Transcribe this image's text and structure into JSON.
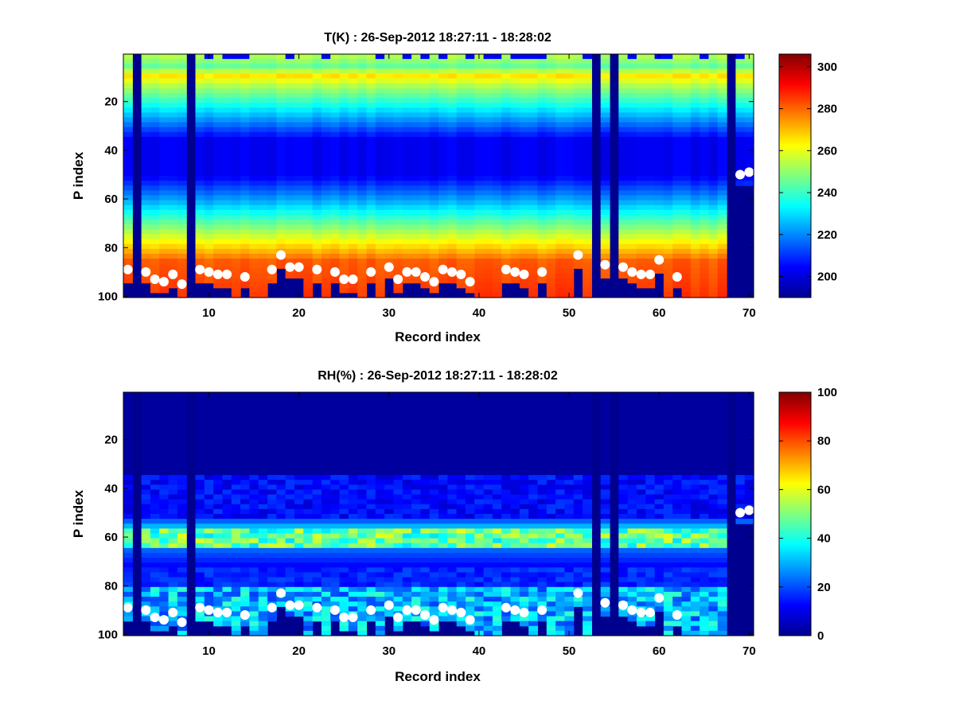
{
  "colors": {
    "background": "#ffffff",
    "axis": "#000000",
    "marker": "#ffffff",
    "colormap": "jet"
  },
  "chart_data": [
    {
      "type": "heatmap",
      "title": "T(K) : 26-Sep-2012 18:27:11 - 18:28:02",
      "xlabel": "Record index",
      "ylabel": "P index",
      "xlim": [
        0.5,
        70.5
      ],
      "ylim": [
        100,
        1
      ],
      "x_reversed": false,
      "y_reversed": true,
      "x_ticks": [
        10,
        20,
        30,
        40,
        50,
        60,
        70
      ],
      "y_ticks": [
        20,
        40,
        60,
        80,
        100
      ],
      "colorbar": {
        "min": 190,
        "max": 306,
        "ticks": [
          200,
          220,
          240,
          260,
          280,
          300
        ]
      },
      "profile_model": "temperature",
      "empty_columns": [
        2,
        8,
        53,
        55,
        68
      ],
      "surface_markers": {
        "x": [
          1,
          3,
          4,
          5,
          6,
          7,
          9,
          10,
          11,
          12,
          14,
          17,
          18,
          19,
          20,
          22,
          24,
          25,
          26,
          28,
          30,
          31,
          32,
          33,
          34,
          35,
          36,
          37,
          38,
          39,
          43,
          44,
          45,
          47,
          51,
          54,
          56,
          57,
          58,
          59,
          60,
          62,
          69,
          70
        ],
        "y": [
          89,
          90,
          93,
          94,
          91,
          95,
          89,
          90,
          91,
          91,
          92,
          89,
          83,
          88,
          88,
          89,
          90,
          93,
          93,
          90,
          88,
          93,
          90,
          90,
          92,
          94,
          89,
          90,
          91,
          94,
          89,
          90,
          91,
          90,
          83,
          87,
          88,
          90,
          91,
          91,
          85,
          92,
          50,
          49
        ]
      }
    },
    {
      "type": "heatmap",
      "title": "RH(%) : 26-Sep-2012 18:27:11 - 18:28:02",
      "xlabel": "Record index",
      "ylabel": "P index",
      "xlim": [
        0.5,
        70.5
      ],
      "ylim": [
        100,
        1
      ],
      "x_reversed": false,
      "y_reversed": true,
      "x_ticks": [
        10,
        20,
        30,
        40,
        50,
        60,
        70
      ],
      "y_ticks": [
        20,
        40,
        60,
        80,
        100
      ],
      "colorbar": {
        "min": 0,
        "max": 100,
        "ticks": [
          0,
          20,
          40,
          60,
          80,
          100
        ]
      },
      "profile_model": "humidity",
      "empty_columns": [
        2,
        8,
        53,
        55,
        68
      ],
      "surface_markers": {
        "x": [
          1,
          3,
          4,
          5,
          6,
          7,
          9,
          10,
          11,
          12,
          14,
          17,
          18,
          19,
          20,
          22,
          24,
          25,
          26,
          28,
          30,
          31,
          32,
          33,
          34,
          35,
          36,
          37,
          38,
          39,
          43,
          44,
          45,
          47,
          51,
          54,
          56,
          57,
          58,
          59,
          60,
          62,
          69,
          70
        ],
        "y": [
          89,
          90,
          93,
          94,
          91,
          95,
          89,
          90,
          91,
          91,
          92,
          89,
          83,
          88,
          88,
          89,
          90,
          93,
          93,
          90,
          88,
          93,
          90,
          90,
          92,
          94,
          89,
          90,
          91,
          94,
          89,
          90,
          91,
          90,
          83,
          87,
          88,
          90,
          91,
          91,
          85,
          92,
          50,
          49
        ]
      }
    }
  ]
}
